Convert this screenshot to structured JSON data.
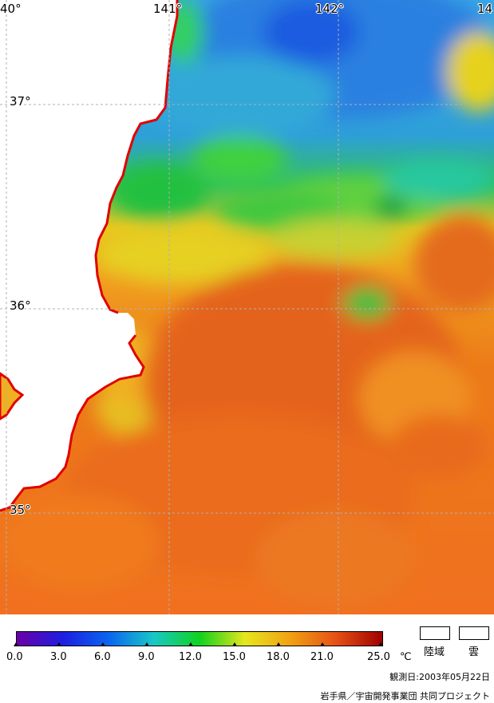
{
  "map": {
    "lon_labels": [
      "40°",
      "141°",
      "142°",
      "14"
    ],
    "lat_labels": [
      "37°",
      "36°",
      "35°"
    ]
  },
  "legend": {
    "ticks": [
      "0.0",
      "3.0",
      "6.0",
      "9.0",
      "12.0",
      "15.0",
      "18.0",
      "21.0",
      "25.0"
    ],
    "unit": "℃",
    "land_label": "陸域",
    "cloud_label": "雲",
    "colors": [
      "#6a00a8",
      "#1e1ee0",
      "#0a64f0",
      "#18c8c8",
      "#10d21e",
      "#e6e61e",
      "#f0a014",
      "#e65014",
      "#a00000"
    ]
  },
  "footer": {
    "observation_date": "観測日:2003年05月22日",
    "credit": "岩手県／宇宙開発事業団  共同プロジェクト"
  }
}
